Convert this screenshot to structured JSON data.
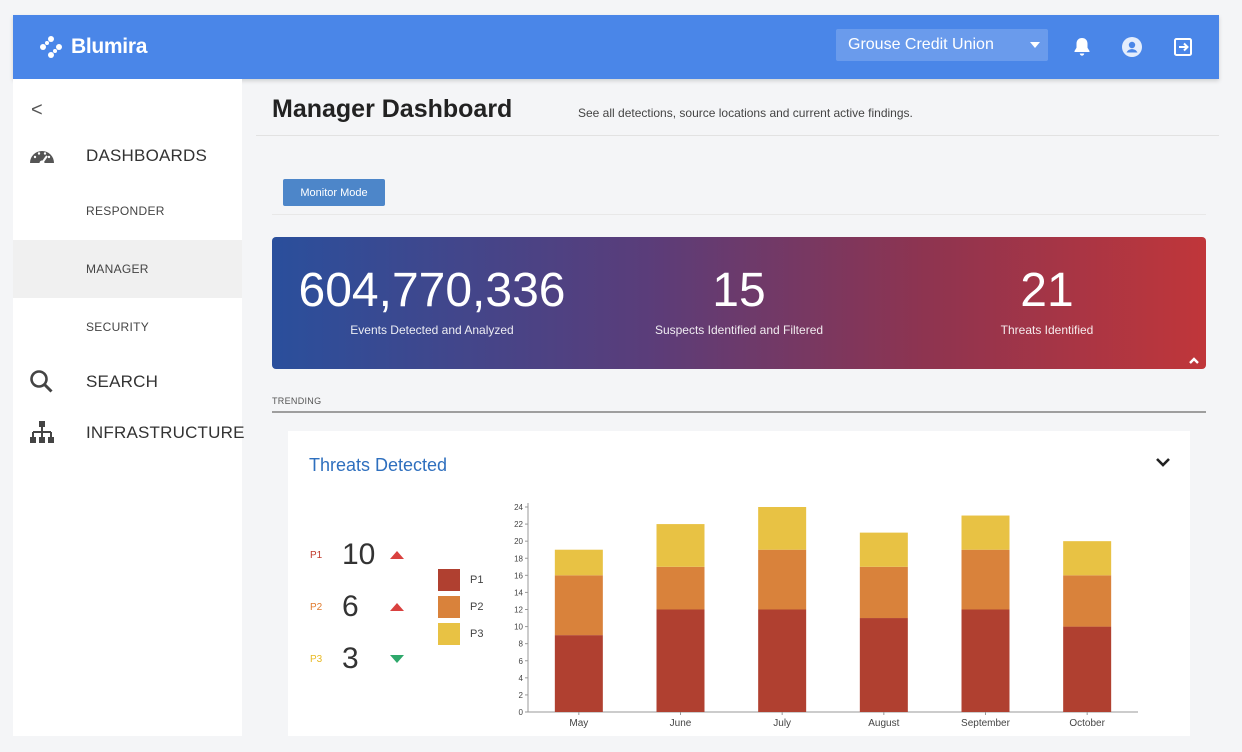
{
  "app": {
    "brand": "Blumira",
    "org_selector": "Grouse Credit Union",
    "icons": [
      "bell-icon",
      "user-icon",
      "logout-icon"
    ],
    "accent_color": "#4a86e8"
  },
  "sidebar": {
    "collapse_glyph": "<",
    "items": [
      {
        "label": "DASHBOARDS",
        "icon": "dashboard-gauge-icon"
      },
      {
        "label": "RESPONDER",
        "sub": true
      },
      {
        "label": "MANAGER",
        "sub": true,
        "active": true
      },
      {
        "label": "SECURITY",
        "sub": true
      },
      {
        "label": "SEARCH",
        "icon": "search-icon"
      },
      {
        "label": "INFRASTRUCTURE",
        "icon": "network-icon"
      }
    ]
  },
  "header": {
    "title": "Manager Dashboard",
    "description": "See all detections, source locations and current active findings."
  },
  "monitor_button": "Monitor Mode",
  "stats": [
    {
      "value": "604,770,336",
      "label": "Events Detected and Analyzed"
    },
    {
      "value": "15",
      "label": "Suspects Identified and Filtered"
    },
    {
      "value": "21",
      "label": "Threats Identified"
    }
  ],
  "trending_label": "TRENDING",
  "threats_card": {
    "title": "Threats Detected",
    "priorities": [
      {
        "label": "P1",
        "value": "10",
        "trend": "up",
        "color": "#c0392b"
      },
      {
        "label": "P2",
        "value": "6",
        "trend": "up",
        "color": "#e07b2e"
      },
      {
        "label": "P3",
        "value": "3",
        "trend": "down",
        "color": "#e8b923"
      }
    ]
  },
  "chart_data": {
    "type": "bar",
    "stacked": true,
    "categories": [
      "May",
      "June",
      "July",
      "August",
      "September",
      "October"
    ],
    "series": [
      {
        "name": "P1",
        "color": "#b04030",
        "values": [
          9,
          12,
          12,
          11,
          12,
          10
        ]
      },
      {
        "name": "P2",
        "color": "#d9823b",
        "values": [
          7,
          5,
          7,
          6,
          7,
          6
        ]
      },
      {
        "name": "P3",
        "color": "#e8c244",
        "values": [
          3,
          5,
          5,
          4,
          4,
          4
        ]
      }
    ],
    "ylim": [
      0,
      24
    ],
    "yticks": [
      0,
      2,
      4,
      6,
      8,
      10,
      12,
      14,
      16,
      18,
      20,
      22,
      24
    ],
    "legend_position": "left",
    "grid": false
  }
}
